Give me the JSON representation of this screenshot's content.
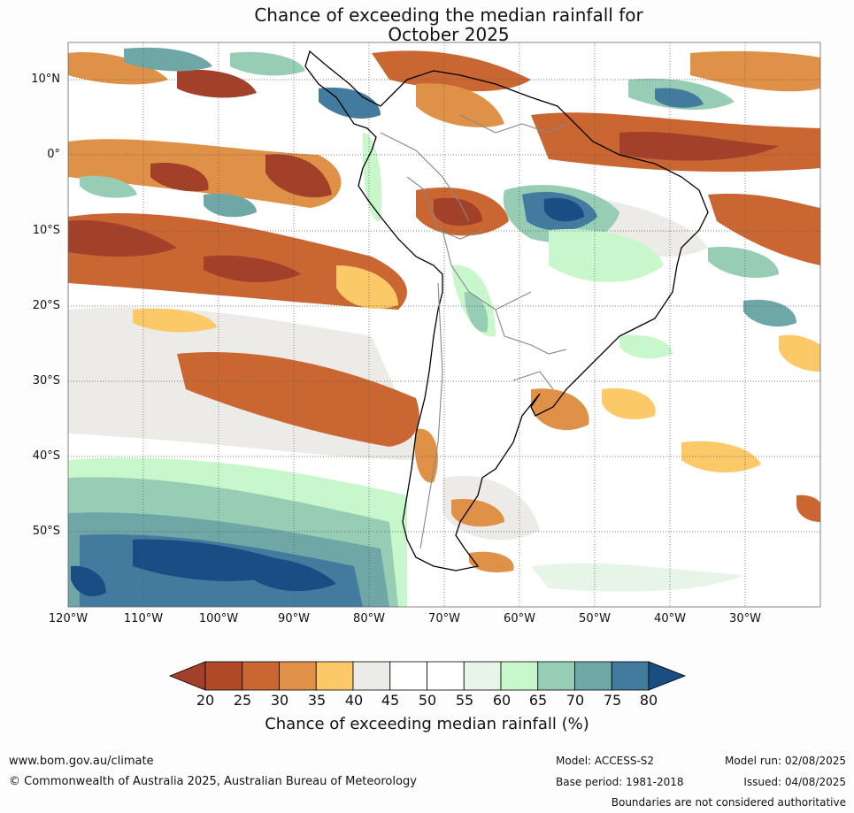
{
  "title": {
    "line1": "Chance of exceeding the median rainfall for",
    "line2": "October 2025"
  },
  "map": {
    "region": "South America",
    "lat_labels": [
      "10°N",
      "0°",
      "10°S",
      "20°S",
      "30°S",
      "40°S",
      "50°S"
    ],
    "lon_labels": [
      "120°W",
      "110°W",
      "100°W",
      "90°W",
      "80°W",
      "70°W",
      "60°W",
      "50°W",
      "40°W",
      "30°W"
    ],
    "gridlines": true
  },
  "colorbar": {
    "ticks": [
      "20",
      "25",
      "30",
      "35",
      "40",
      "45",
      "50",
      "55",
      "60",
      "65",
      "70",
      "75",
      "80"
    ],
    "colors": [
      "#a2402a",
      "#b04a27",
      "#ca6632",
      "#de9147",
      "#fbc968",
      "#edebe7",
      "#ffffff",
      "#ffffff",
      "#e6f5e8",
      "#c8f7cb",
      "#97cdb4",
      "#6fa7a6",
      "#427b9d",
      "#1a4d84"
    ],
    "label": "Chance of exceeding median rainfall (%)"
  },
  "footer": {
    "website": "www.bom.gov.au/climate",
    "copyright": "© Commonwealth of Australia 2025, Australian Bureau of Meteorology",
    "model": "Model: ACCESS-S2",
    "base_period": "Base period: 1981-2018",
    "model_run": "Model run: 02/08/2025",
    "issued": "Issued: 04/08/2025",
    "disclaimer": "Boundaries are not considered authoritative"
  }
}
